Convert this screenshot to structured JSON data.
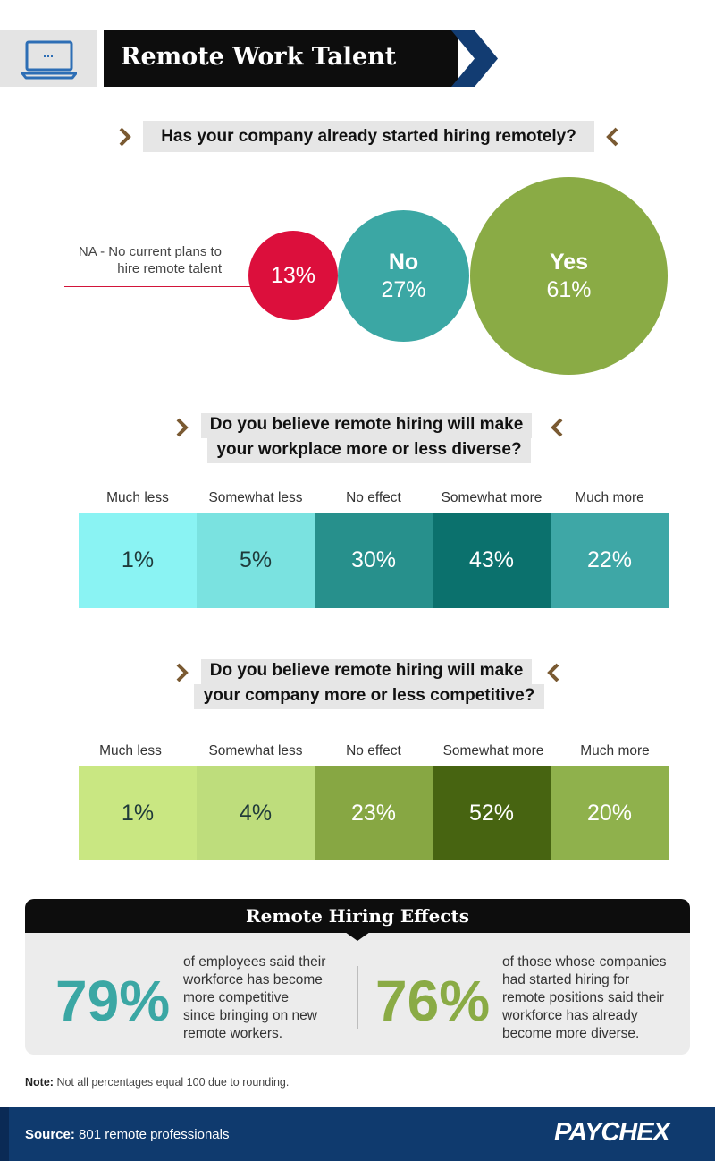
{
  "header": {
    "title": "Remote Work Talent",
    "icon": "laptop-icon"
  },
  "questions": {
    "q1": "Has your company already started hiring remotely?",
    "q2_line1": "Do you believe remote hiring will make",
    "q2_line2": "your workplace more or less diverse?",
    "q3_line1": "Do you believe remote hiring will make",
    "q3_line2": "your company more or less competitive?"
  },
  "chart_data": [
    {
      "type": "bubble",
      "categories": [
        "NA - No current plans to hire remote talent",
        "No",
        "Yes"
      ],
      "values": [
        13,
        27,
        61
      ],
      "labels": {
        "na_line1": "NA - No current plans to",
        "na_line2": "hire remote talent",
        "na_pct": "13%",
        "no_name": "No",
        "no_pct": "27%",
        "yes_name": "Yes",
        "yes_pct": "61%"
      },
      "colors": [
        "#dc0f3c",
        "#3ba7a4",
        "#8aab45"
      ]
    },
    {
      "type": "bar",
      "categories": [
        "Much less",
        "Somewhat less",
        "No effect",
        "Somewhat more",
        "Much more"
      ],
      "values": [
        1,
        5,
        30,
        43,
        22
      ],
      "labels": [
        "1%",
        "5%",
        "30%",
        "43%",
        "22%"
      ],
      "colors": [
        "#8af3f3",
        "#7ae2e0",
        "#27908c",
        "#0b716d",
        "#3ea7a6"
      ]
    },
    {
      "type": "bar",
      "categories": [
        "Much less",
        "Somewhat less",
        "No effect",
        "Somewhat more",
        "Much more"
      ],
      "values": [
        1,
        4,
        23,
        52,
        20
      ],
      "labels": [
        "1%",
        "4%",
        "23%",
        "52%",
        "20%"
      ],
      "colors": [
        "#c9e782",
        "#bedd7c",
        "#87a743",
        "#476411",
        "#8fb14c"
      ]
    }
  ],
  "effects": {
    "title": "Remote Hiring Effects",
    "left_pct": "79%",
    "left_text": [
      "of employees said their",
      "workforce has become",
      "more competitive",
      "since bringing on new",
      "remote workers."
    ],
    "right_pct": "76%",
    "right_text": [
      "of those whose companies",
      "had started hiring for",
      "remote positions said their",
      "workforce has already",
      "become more diverse."
    ],
    "colors": {
      "left": "#3ba7a4",
      "right": "#8aab45"
    }
  },
  "note": {
    "label": "Note:",
    "text": "Not all percentages equal 100 due to rounding."
  },
  "footer": {
    "source_label": "Source:",
    "source_text": "801 remote professionals",
    "brand": "PAYCHEX"
  },
  "colors": {
    "chevron": "#7a5a32",
    "header_chevron": "#123c72",
    "footer": "#0f3a6e"
  }
}
